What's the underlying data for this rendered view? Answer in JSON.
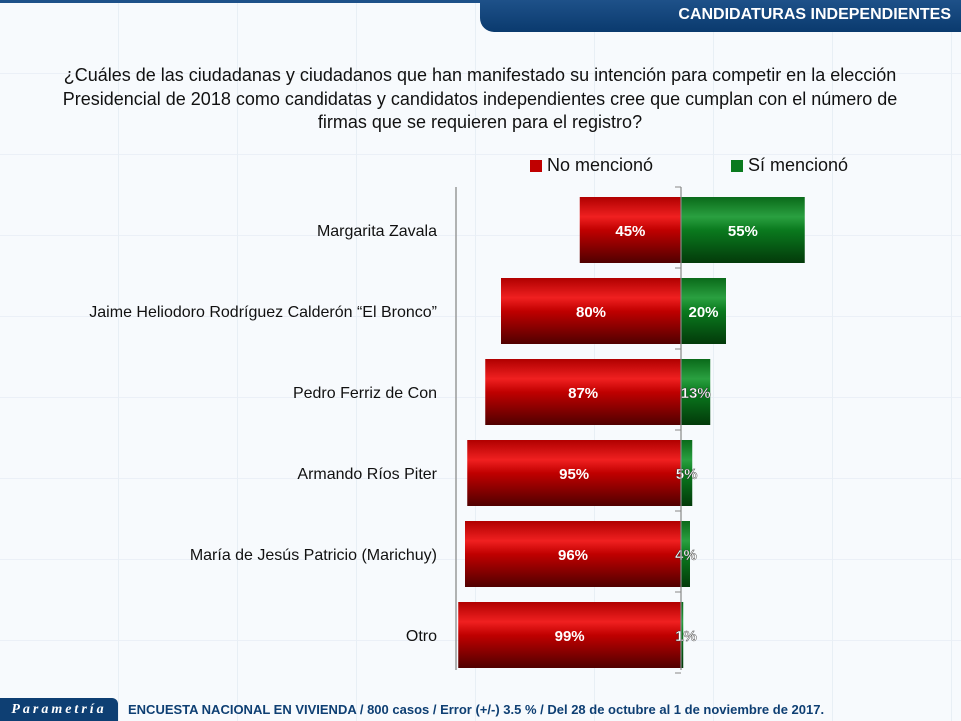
{
  "header": {
    "title": "CANDIDATURAS INDEPENDIENTES"
  },
  "footer": {
    "logo": "Parametría",
    "text": "ENCUESTA NACIONAL EN VIVIENDA / 800 casos / Error (+/-) 3.5 % / Del 28 de octubre al 1 de noviembre de 2017."
  },
  "chart_data": {
    "type": "bar",
    "orientation": "horizontal-diverging",
    "title": "¿Cuáles de las ciudadanas y ciudadanos que han manifestado su intención para competir en la elección Presidencial de 2018 como candidatas y candidatos independientes cree que cumplan con el número de firmas que se requieren para el registro?",
    "categories": [
      "Margarita Zavala",
      "Jaime Heliodoro Rodríguez Calderón  “El Bronco”",
      "Pedro Ferriz de Con",
      "Armando Ríos Piter",
      "María de Jesús Patricio (Marichuy)",
      "Otro"
    ],
    "series": [
      {
        "name": "No mencionó",
        "color": "#c00000",
        "values": [
          45,
          80,
          87,
          95,
          96,
          99
        ]
      },
      {
        "name": "Sí mencionó",
        "color": "#0a7a1e",
        "values": [
          55,
          20,
          13,
          5,
          4,
          1
        ]
      }
    ],
    "unit": "%",
    "legend": "top"
  }
}
